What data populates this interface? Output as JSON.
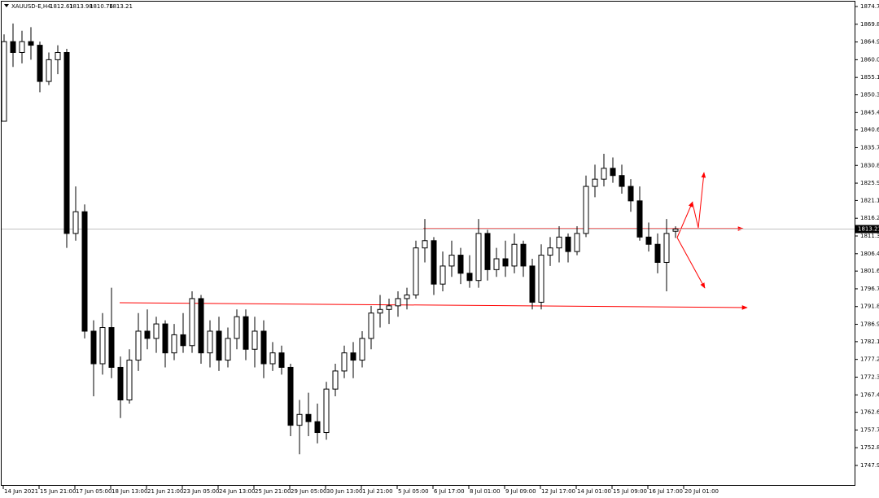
{
  "chart_data": {
    "type": "candlestick",
    "symbol": "XAUUSD-E,H4",
    "categories": [
      "14 Jun 2021",
      null,
      null,
      null,
      "15 Jun 21:00",
      null,
      null,
      null,
      "17 Jun 05:00",
      null,
      null,
      null,
      "18 Jun 13:00",
      null,
      null,
      null,
      "21 Jun 21:00",
      null,
      null,
      null,
      "23 Jun 05:00",
      null,
      null,
      null,
      "24 Jun 13:00",
      null,
      null,
      null,
      "25 Jun 21:00",
      null,
      null,
      null,
      "29 Jun 05:00",
      null,
      null,
      null,
      "30 Jun 13:00",
      null,
      null,
      null,
      "1 Jul 21:00",
      null,
      null,
      null,
      "5 Jul 05:00",
      null,
      null,
      null,
      "6 Jul 17:00",
      null,
      null,
      null,
      "8 Jul 01:00",
      null,
      null,
      null,
      "9 Jul 09:00",
      null,
      null,
      null,
      "12 Jul 17:00",
      null,
      null,
      null,
      "14 Jul 01:00",
      null,
      null,
      null,
      "15 Jul 09:00",
      null,
      null,
      null,
      "16 Jul 17:00",
      null,
      null,
      null,
      "20 Jul 01:00"
    ],
    "open": [
      1843,
      1865,
      1862,
      1865,
      1864,
      1854,
      1860,
      1862,
      1812,
      1818,
      1785,
      1776,
      1786,
      1775,
      1766,
      1777,
      1785,
      1783,
      1787,
      1779,
      1784,
      1781,
      1794,
      1779,
      1785,
      1777,
      1783,
      1789,
      1780,
      1785,
      1776,
      1779,
      1775,
      1759,
      1762,
      1760,
      1757,
      1769,
      1774,
      1779,
      1777,
      1783,
      1790,
      1791,
      1792,
      1794,
      1795,
      1808,
      1810,
      1798,
      1803,
      1806,
      1801,
      1799,
      1812,
      1802,
      1805,
      1803,
      1809,
      1803,
      1793,
      1806,
      1808,
      1811,
      1807,
      1812,
      1825,
      1827,
      1830,
      1828,
      1825,
      1821,
      1811,
      1809,
      1804,
      1812.61,
      null
    ],
    "high": [
      1867,
      1870,
      1868,
      1869,
      1865,
      1862,
      1864,
      1863,
      1825,
      1820,
      1788,
      1790,
      1797,
      1778,
      1780,
      1790,
      1791,
      1789,
      1788,
      1787,
      1790,
      1796,
      1795,
      1788,
      1789,
      1786,
      1791,
      1791,
      1789,
      1788,
      1782,
      1781,
      1776,
      1766,
      1768,
      1765,
      1771,
      1776,
      1781,
      1782,
      1785,
      1792,
      1795,
      1794,
      1796,
      1797,
      1810,
      1816,
      1811,
      1807,
      1810,
      1808,
      1806,
      1816,
      1813,
      1808,
      1810,
      1812,
      1810,
      1805,
      1809,
      1811,
      1814,
      1812,
      1814,
      1828,
      1831,
      1834,
      1833,
      1831,
      1827,
      1825,
      1815,
      1812,
      1816,
      1813.98,
      null
    ],
    "low": [
      1843,
      1858,
      1859,
      1860,
      1851,
      1853,
      1856,
      1808,
      1810,
      1783,
      1767,
      1773,
      1772,
      1761,
      1765,
      1774,
      1780,
      1779,
      1775,
      1777,
      1779,
      1779,
      1776,
      1775,
      1774,
      1775,
      1780,
      1777,
      1775,
      1772,
      1774,
      1773,
      1756,
      1751,
      1756,
      1754,
      1755,
      1767,
      1772,
      1772,
      1775,
      1780,
      1786,
      1787,
      1789,
      1791,
      1794,
      1804,
      1795,
      1796,
      1800,
      1798,
      1797,
      1797,
      1799,
      1800,
      1800,
      1801,
      1800,
      1791,
      1791,
      1803,
      1804,
      1804,
      1806,
      1811,
      1822,
      1825,
      1826,
      1823,
      1818,
      1810,
      1807,
      1801,
      1796,
      1810.76,
      null
    ],
    "close": [
      1865,
      1862,
      1865,
      1864,
      1854,
      1860,
      1862,
      1812,
      1818,
      1785,
      1776,
      1786,
      1775,
      1766,
      1777,
      1785,
      1783,
      1787,
      1779,
      1784,
      1781,
      1794,
      1779,
      1785,
      1777,
      1783,
      1789,
      1780,
      1785,
      1776,
      1779,
      1775,
      1759,
      1762,
      1760,
      1757,
      1769,
      1774,
      1779,
      1777,
      1783,
      1790,
      1791,
      1792,
      1794,
      1795,
      1808,
      1810,
      1798,
      1803,
      1806,
      1801,
      1799,
      1812,
      1802,
      1805,
      1803,
      1809,
      1803,
      1793,
      1806,
      1808,
      1811,
      1807,
      1812,
      1825,
      1827,
      1830,
      1828,
      1825,
      1821,
      1811,
      1809,
      1804,
      1812,
      1813.21,
      null
    ],
    "ylim": [
      1747.9,
      1874.7
    ],
    "yticks": [
      {
        "value": 1874.7,
        "label": "1874.70"
      },
      {
        "value": 1869.8,
        "label": "1869.80"
      },
      {
        "value": 1864.9,
        "label": "1864.90"
      },
      {
        "value": 1860,
        "label": "1860.00"
      },
      {
        "value": 1855.1,
        "label": "1855.10"
      },
      {
        "value": 1850.3,
        "label": "1850.30"
      },
      {
        "value": 1845.4,
        "label": "1845.40"
      },
      {
        "value": 1840.6,
        "label": "1840.60"
      },
      {
        "value": 1835.7,
        "label": "1835.70"
      },
      {
        "value": 1830.8,
        "label": "1830.80"
      },
      {
        "value": 1825.9,
        "label": "1825.90"
      },
      {
        "value": 1821.1,
        "label": "1821.10"
      },
      {
        "value": 1816.2,
        "label": "1816.20"
      },
      {
        "value": 1811.3,
        "label": "1811.30"
      },
      {
        "value": 1806.4,
        "label": "1806.40"
      },
      {
        "value": 1801.6,
        "label": "1801.60"
      },
      {
        "value": 1796.7,
        "label": "1796.70"
      },
      {
        "value": 1791.8,
        "label": "1791.80"
      },
      {
        "value": 1786.9,
        "label": "1786.90"
      },
      {
        "value": 1782.1,
        "label": "1782.10"
      },
      {
        "value": 1777.2,
        "label": "1777.20"
      },
      {
        "value": 1772.3,
        "label": "1772.30"
      },
      {
        "value": 1767.4,
        "label": "1767.40"
      },
      {
        "value": 1762.6,
        "label": "1762.60"
      },
      {
        "value": 1757.7,
        "label": "1757.70"
      },
      {
        "value": 1752.8,
        "label": "1752.80"
      },
      {
        "value": 1747.9,
        "label": "1747.90"
      }
    ]
  }
}
